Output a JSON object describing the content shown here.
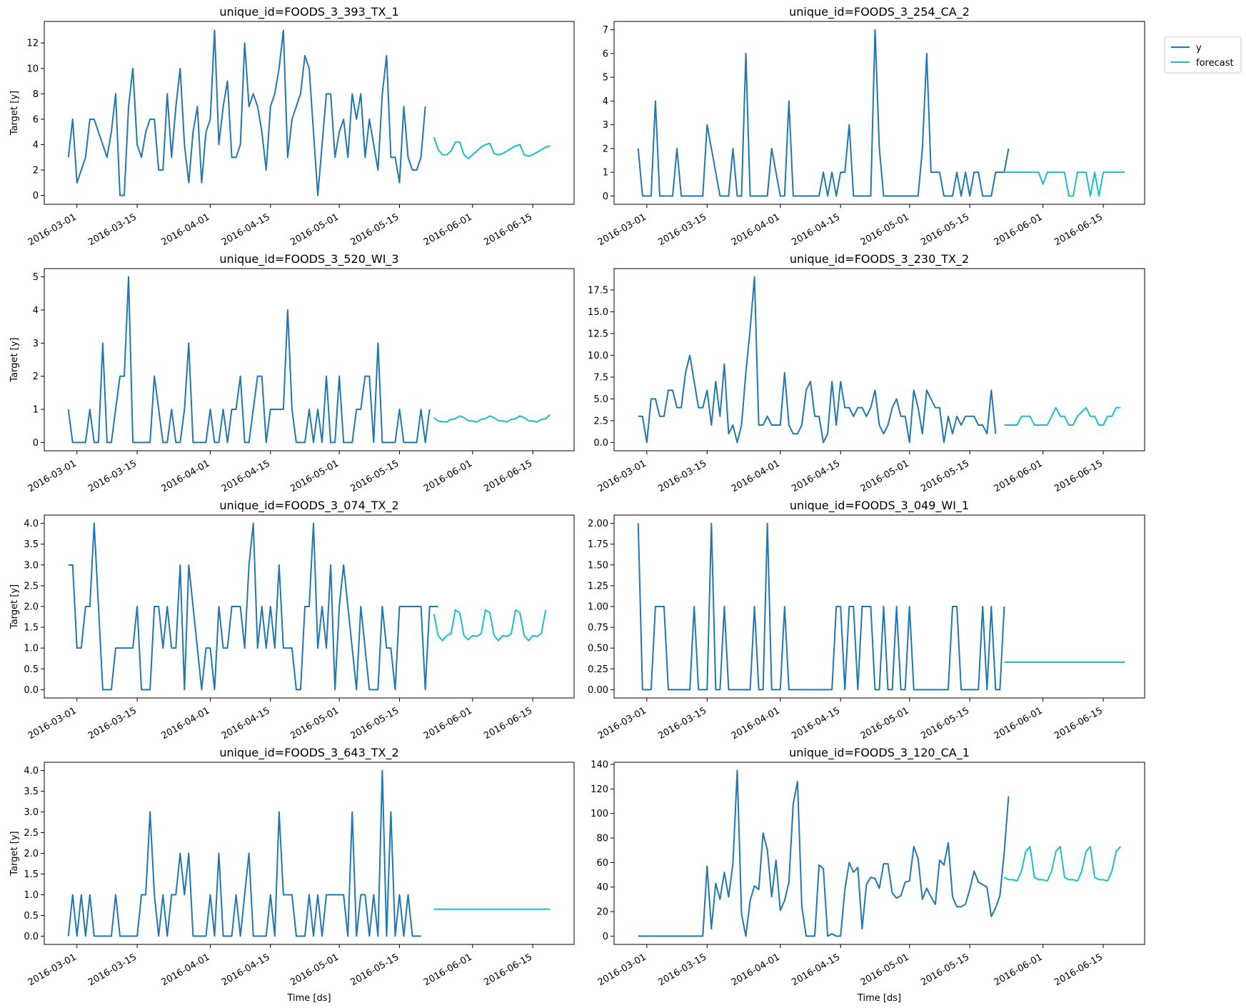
{
  "figure": {
    "legend": {
      "placement": "right, outside top-right panel",
      "entries": [
        "y",
        "forecast"
      ]
    },
    "colors": {
      "y": "#1f77b4",
      "forecast": "#17becf",
      "axis": "#000000"
    },
    "x_axis": {
      "start_date": "2016-02-28",
      "end_date": "2016-06-19",
      "ticks": [
        "2016-03-01",
        "2016-03-15",
        "2016-04-01",
        "2016-04-15",
        "2016-05-01",
        "2016-05-15",
        "2016-06-01",
        "2016-06-15"
      ],
      "history_start": "2016-02-28",
      "forecast_start": "2016-05-23",
      "xlabel": "Time [ds]"
    },
    "ylabel": "Target [y]"
  },
  "chart_data": [
    {
      "type": "line",
      "title": "unique_id=FOODS_3_393_TX_1",
      "ylim": [
        -0.7,
        13.7
      ],
      "yticks": [
        0,
        2,
        4,
        6,
        8,
        10,
        12
      ],
      "ytick_labels": [
        "0",
        "2",
        "4",
        "6",
        "8",
        "10",
        "12"
      ],
      "series": [
        {
          "name": "y",
          "values": [
            3,
            6,
            1,
            2,
            3,
            6,
            6,
            5,
            4,
            3,
            5,
            8,
            0,
            0,
            7,
            10,
            4,
            3,
            5,
            6,
            6,
            2,
            2,
            8,
            3,
            7,
            10,
            4,
            1,
            5,
            7,
            1,
            5,
            6,
            13,
            4,
            7,
            9,
            3,
            3,
            4,
            12,
            7,
            8,
            7,
            5,
            2,
            7,
            8,
            10,
            13,
            3,
            6,
            7,
            8,
            11,
            10,
            5,
            0,
            4,
            8,
            8,
            3,
            5,
            6,
            3,
            8,
            6,
            8,
            3,
            6,
            4,
            2,
            8,
            11,
            3,
            3,
            1,
            7,
            3,
            2,
            2,
            3,
            7
          ]
        },
        {
          "name": "forecast",
          "values": [
            4.6,
            3.6,
            3.2,
            3.2,
            3.5,
            4.2,
            4.2,
            3.2,
            2.9,
            3.2,
            3.5,
            3.8,
            4.0,
            4.1,
            3.3,
            3.2,
            3.3,
            3.5,
            3.7,
            3.9,
            4.0,
            3.2,
            3.1,
            3.2,
            3.4,
            3.6,
            3.8,
            3.9
          ]
        }
      ]
    },
    {
      "type": "line",
      "title": "unique_id=FOODS_3_254_CA_2",
      "ylim": [
        -0.35,
        7.35
      ],
      "yticks": [
        0,
        1,
        2,
        3,
        4,
        5,
        6,
        7
      ],
      "ytick_labels": [
        "0",
        "1",
        "2",
        "3",
        "4",
        "5",
        "6",
        "7"
      ],
      "series": [
        {
          "name": "y",
          "values": [
            2,
            0,
            0,
            0,
            4,
            0,
            0,
            0,
            0,
            2,
            0,
            0,
            0,
            0,
            0,
            0,
            3,
            2,
            1,
            0,
            0,
            0,
            2,
            0,
            0,
            6,
            0,
            0,
            0,
            0,
            0,
            2,
            1,
            0,
            0,
            4,
            0,
            0,
            0,
            0,
            0,
            0,
            0,
            1,
            0,
            1,
            0,
            1,
            1,
            3,
            0,
            0,
            0,
            0,
            0,
            7,
            2,
            0,
            0,
            0,
            0,
            0,
            0,
            0,
            0,
            0,
            2,
            6,
            1,
            1,
            1,
            0,
            0,
            0,
            1,
            0,
            1,
            0,
            1,
            1,
            0,
            0,
            0,
            1,
            1,
            1,
            2
          ]
        },
        {
          "name": "forecast",
          "values": [
            1,
            1,
            1,
            1,
            1,
            1,
            1,
            1,
            1,
            0.5,
            1,
            1,
            1,
            1,
            1,
            0,
            0,
            1,
            1,
            1,
            0,
            1,
            0,
            1,
            1,
            1,
            1,
            1,
            1
          ]
        }
      ]
    },
    {
      "type": "line",
      "title": "unique_id=FOODS_3_520_WI_3",
      "ylim": [
        -0.25,
        5.25
      ],
      "yticks": [
        0,
        1,
        2,
        3,
        4,
        5
      ],
      "ytick_labels": [
        "0",
        "1",
        "2",
        "3",
        "4",
        "5"
      ],
      "series": [
        {
          "name": "y",
          "values": [
            1,
            0,
            0,
            0,
            0,
            1,
            0,
            0,
            3,
            0,
            0,
            1,
            2,
            2,
            5,
            0,
            0,
            0,
            0,
            0,
            2,
            1,
            0,
            0,
            1,
            0,
            0,
            1,
            3,
            0,
            0,
            0,
            0,
            1,
            0,
            0,
            1,
            0,
            1,
            1,
            2,
            0,
            0,
            1,
            2,
            2,
            0,
            1,
            1,
            1,
            1,
            4,
            1,
            0,
            0,
            0,
            1,
            0,
            1,
            0,
            2,
            0,
            0,
            2,
            0,
            0,
            0,
            1,
            1,
            2,
            2,
            0,
            3,
            0,
            0,
            0,
            0,
            1,
            0,
            0,
            0,
            0,
            1,
            0,
            1
          ]
        },
        {
          "name": "forecast",
          "values": [
            0.75,
            0.65,
            0.63,
            0.62,
            0.7,
            0.72,
            0.8,
            0.75,
            0.66,
            0.65,
            0.62,
            0.7,
            0.72,
            0.8,
            0.75,
            0.66,
            0.65,
            0.62,
            0.7,
            0.72,
            0.8,
            0.75,
            0.66,
            0.65,
            0.62,
            0.7,
            0.72,
            0.84
          ]
        }
      ]
    },
    {
      "type": "line",
      "title": "unique_id=FOODS_3_230_TX_2",
      "ylim": [
        -0.95,
        19.95
      ],
      "yticks": [
        0,
        2.5,
        5,
        7.5,
        10,
        12.5,
        15,
        17.5
      ],
      "ytick_labels": [
        "0.0",
        "2.5",
        "5.0",
        "7.5",
        "10.0",
        "12.5",
        "15.0",
        "17.5"
      ],
      "series": [
        {
          "name": "y",
          "values": [
            3,
            3,
            0,
            5,
            5,
            3,
            3,
            6,
            6,
            4,
            4,
            8,
            10,
            7,
            4,
            4,
            6,
            2,
            7,
            3,
            9,
            1,
            2,
            0,
            2,
            8,
            13,
            19,
            2,
            2,
            3,
            2,
            2,
            2,
            8,
            2,
            1,
            1,
            2,
            6,
            7,
            3,
            3,
            0,
            1,
            7,
            2,
            7,
            4,
            4,
            3,
            4,
            4,
            3,
            4,
            6,
            2,
            1,
            2,
            4,
            5,
            3,
            3,
            0,
            6,
            4,
            1,
            6,
            5,
            4,
            4,
            0,
            3,
            1,
            3,
            2,
            3,
            3,
            3,
            2,
            2,
            1,
            6,
            1
          ]
        },
        {
          "name": "forecast",
          "values": [
            2,
            2,
            2,
            2,
            3,
            3,
            3,
            2,
            2,
            2,
            2,
            3,
            4,
            3,
            3,
            2,
            2,
            3,
            3.5,
            4,
            3,
            3,
            2,
            2,
            3,
            3,
            4,
            4
          ]
        }
      ]
    },
    {
      "type": "line",
      "title": "unique_id=FOODS_3_074_TX_2",
      "ylim": [
        -0.2,
        4.2
      ],
      "yticks": [
        0,
        0.5,
        1,
        1.5,
        2,
        2.5,
        3,
        3.5,
        4
      ],
      "ytick_labels": [
        "0.0",
        "0.5",
        "1.0",
        "1.5",
        "2.0",
        "2.5",
        "3.0",
        "3.5",
        "4.0"
      ],
      "series": [
        {
          "name": "y",
          "values": [
            3,
            3,
            1,
            1,
            2,
            2,
            4,
            2,
            0,
            0,
            0,
            1,
            1,
            1,
            1,
            1,
            2,
            0,
            0,
            0,
            2,
            2,
            1,
            2,
            1,
            1,
            3,
            0,
            3,
            2,
            1,
            0,
            1,
            1,
            0,
            2,
            1,
            1,
            2,
            2,
            2,
            1,
            3,
            4,
            1,
            2,
            1,
            2,
            1,
            3,
            1,
            1,
            1,
            0,
            0,
            2,
            2,
            4,
            1,
            2,
            1,
            3,
            0,
            2,
            3,
            2,
            1,
            0,
            2,
            1,
            0,
            0,
            0,
            2,
            1,
            1,
            0,
            2,
            2,
            2,
            2,
            2,
            2,
            0,
            2,
            2,
            2
          ]
        },
        {
          "name": "forecast",
          "values": [
            1.82,
            1.3,
            1.18,
            1.3,
            1.35,
            1.92,
            1.85,
            1.3,
            1.2,
            1.3,
            1.28,
            1.35,
            1.92,
            1.85,
            1.3,
            1.18,
            1.3,
            1.28,
            1.35,
            1.92,
            1.85,
            1.3,
            1.18,
            1.3,
            1.28,
            1.35,
            1.92
          ]
        }
      ]
    },
    {
      "type": "line",
      "title": "unique_id=FOODS_3_049_WI_1",
      "ylim": [
        -0.1,
        2.1
      ],
      "yticks": [
        0,
        0.25,
        0.5,
        0.75,
        1,
        1.25,
        1.5,
        1.75,
        2
      ],
      "ytick_labels": [
        "0.00",
        "0.25",
        "0.50",
        "0.75",
        "1.00",
        "1.25",
        "1.50",
        "1.75",
        "2.00"
      ],
      "series": [
        {
          "name": "y",
          "values": [
            2,
            0,
            0,
            0,
            1,
            1,
            1,
            0,
            0,
            0,
            0,
            0,
            0,
            1,
            0,
            0,
            0,
            2,
            0,
            0,
            1,
            0,
            0,
            0,
            0,
            0,
            0,
            1,
            0,
            0,
            2,
            0,
            0,
            0,
            1,
            0,
            0,
            0,
            0,
            0,
            0,
            0,
            0,
            0,
            0,
            0,
            1,
            1,
            0,
            1,
            1,
            0,
            1,
            1,
            1,
            0,
            0,
            1,
            0,
            0,
            1,
            0,
            0,
            1,
            0,
            0,
            0,
            0,
            0,
            0,
            0,
            0,
            0,
            1,
            1,
            0,
            0,
            0,
            0,
            0,
            1,
            0,
            1,
            0,
            0,
            1
          ]
        },
        {
          "name": "forecast",
          "values": [
            0.33,
            0.33,
            0.33,
            0.33,
            0.33,
            0.33,
            0.33,
            0.33,
            0.33,
            0.33,
            0.33,
            0.33,
            0.33,
            0.33,
            0.33,
            0.33,
            0.33,
            0.33,
            0.33,
            0.33,
            0.33,
            0.33,
            0.33,
            0.33,
            0.33,
            0.33,
            0.33,
            0.33,
            0.33
          ]
        }
      ]
    },
    {
      "type": "line",
      "title": "unique_id=FOODS_3_643_TX_2",
      "ylim": [
        -0.2,
        4.2
      ],
      "yticks": [
        0,
        0.5,
        1,
        1.5,
        2,
        2.5,
        3,
        3.5,
        4
      ],
      "ytick_labels": [
        "0.0",
        "0.5",
        "1.0",
        "1.5",
        "2.0",
        "2.5",
        "3.0",
        "3.5",
        "4.0"
      ],
      "series": [
        {
          "name": "y",
          "values": [
            0,
            1,
            0,
            1,
            0,
            1,
            0,
            0,
            0,
            0,
            0,
            1,
            0,
            0,
            0,
            0,
            0,
            1,
            1,
            3,
            1,
            0,
            1,
            0,
            1,
            1,
            2,
            1,
            2,
            0,
            0,
            0,
            0,
            1,
            0,
            2,
            0,
            0,
            0,
            1,
            0,
            1,
            2,
            0,
            0,
            0,
            0,
            1,
            0,
            3,
            1,
            1,
            1,
            0,
            0,
            0,
            1,
            0,
            1,
            0,
            1,
            1,
            1,
            1,
            1,
            0,
            3,
            0,
            1,
            1,
            0,
            1,
            0,
            4,
            0,
            3,
            0,
            1,
            0,
            1,
            0,
            0,
            0
          ]
        },
        {
          "name": "forecast",
          "values": [
            0.65,
            0.65,
            0.65,
            0.65,
            0.65,
            0.65,
            0.65,
            0.65,
            0.65,
            0.65,
            0.65,
            0.65,
            0.65,
            0.65,
            0.65,
            0.65,
            0.65,
            0.65,
            0.65,
            0.65,
            0.65,
            0.65,
            0.65,
            0.65,
            0.65,
            0.65,
            0.65,
            0.65
          ]
        }
      ]
    },
    {
      "type": "line",
      "title": "unique_id=FOODS_3_120_CA_1",
      "ylim": [
        -6.75,
        141.75
      ],
      "yticks": [
        0,
        20,
        40,
        60,
        80,
        100,
        120,
        140
      ],
      "ytick_labels": [
        "0",
        "20",
        "40",
        "60",
        "80",
        "100",
        "120",
        "140"
      ],
      "series": [
        {
          "name": "y",
          "values": [
            0,
            0,
            0,
            0,
            0,
            0,
            0,
            0,
            0,
            0,
            0,
            0,
            0,
            0,
            0,
            0,
            57,
            6,
            43,
            30,
            52,
            32,
            59,
            135,
            18,
            0,
            29,
            41,
            38,
            84,
            70,
            32,
            62,
            21,
            29,
            44,
            108,
            126,
            24,
            0,
            0,
            0,
            58,
            55,
            0,
            2,
            0,
            0,
            38,
            60,
            52,
            56,
            6,
            42,
            48,
            47,
            39,
            59,
            59,
            35,
            31,
            33,
            44,
            45,
            73,
            63,
            30,
            39,
            32,
            26,
            62,
            58,
            76,
            32,
            24,
            24,
            26,
            38,
            53,
            44,
            42,
            40,
            16,
            23,
            33,
            68,
            114
          ]
        },
        {
          "name": "forecast",
          "values": [
            48,
            46,
            46,
            45,
            53,
            69,
            73,
            48,
            46,
            46,
            45,
            53,
            69,
            73,
            48,
            46,
            46,
            45,
            53,
            69,
            73,
            48,
            46,
            46,
            45,
            53,
            69,
            73
          ]
        }
      ]
    }
  ]
}
